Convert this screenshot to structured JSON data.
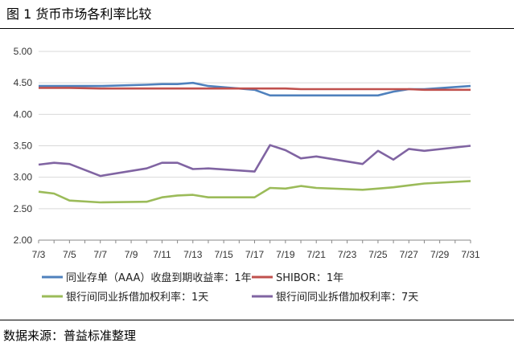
{
  "header": {
    "figure_title": "图 1  货币市场各利率比较"
  },
  "footer": {
    "source": "数据来源：普益标准整理"
  },
  "chart_data": {
    "type": "line",
    "title": "",
    "xlabel": "",
    "ylabel": "",
    "ylim": [
      2.0,
      5.0
    ],
    "yticks": [
      "2.00",
      "2.50",
      "3.00",
      "3.50",
      "4.00",
      "4.50",
      "5.00"
    ],
    "x_tick_labels": [
      "7/3",
      "7/5",
      "7/7",
      "7/9",
      "7/11",
      "7/13",
      "7/15",
      "7/17",
      "7/19",
      "7/21",
      "7/23",
      "7/25",
      "7/27",
      "7/29",
      "7/31"
    ],
    "x": [
      3,
      4,
      5,
      7,
      10,
      11,
      12,
      13,
      14,
      17,
      18,
      19,
      20,
      21,
      24,
      25,
      26,
      27,
      28,
      31
    ],
    "series": [
      {
        "name": "同业存单（AAA）收盘到期收益率：1年",
        "color": "#4f81bd",
        "values": [
          4.45,
          4.45,
          4.45,
          4.45,
          4.47,
          4.48,
          4.48,
          4.5,
          4.45,
          4.39,
          4.3,
          4.3,
          4.3,
          4.3,
          4.3,
          4.3,
          4.36,
          4.4,
          4.4,
          4.45
        ]
      },
      {
        "name": "SHIBOR：1年",
        "color": "#c0504d",
        "values": [
          4.42,
          4.42,
          4.42,
          4.41,
          4.41,
          4.41,
          4.41,
          4.41,
          4.41,
          4.41,
          4.41,
          4.41,
          4.4,
          4.4,
          4.4,
          4.4,
          4.4,
          4.4,
          4.39,
          4.39
        ]
      },
      {
        "name": "银行间同业拆借加权利率：1天",
        "color": "#9bbb59",
        "values": [
          2.77,
          2.74,
          2.63,
          2.6,
          2.61,
          2.68,
          2.71,
          2.72,
          2.68,
          2.68,
          2.83,
          2.82,
          2.86,
          2.83,
          2.8,
          2.82,
          2.84,
          2.87,
          2.9,
          2.94
        ]
      },
      {
        "name": "银行间同业拆借加权利率：7天",
        "color": "#8064a2",
        "values": [
          3.2,
          3.23,
          3.21,
          3.02,
          3.14,
          3.23,
          3.23,
          3.13,
          3.14,
          3.09,
          3.51,
          3.43,
          3.3,
          3.33,
          3.21,
          3.42,
          3.28,
          3.45,
          3.42,
          3.5
        ]
      }
    ],
    "legend_position": "bottom"
  }
}
